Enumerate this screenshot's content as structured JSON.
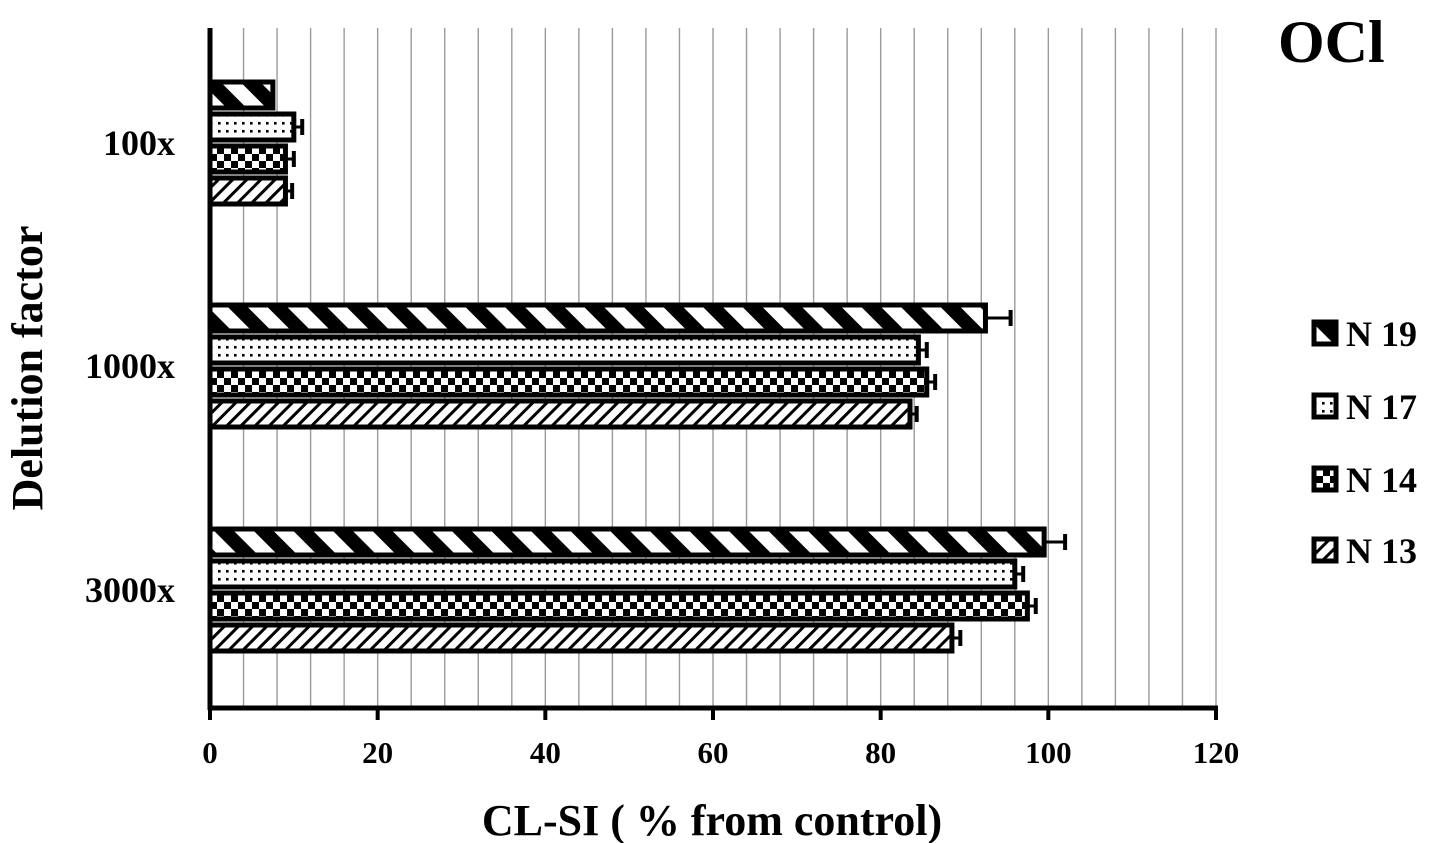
{
  "chart_data": {
    "type": "bar",
    "orientation": "horizontal",
    "title": "OCl",
    "title_overline": "¯",
    "xlabel": "CL-SI ( % from control)",
    "ylabel": "Delution factor",
    "xlim": [
      0,
      120
    ],
    "x_ticks": [
      "0",
      "20",
      "40",
      "60",
      "80",
      "100",
      "120"
    ],
    "minor_gridlines": true,
    "categories": [
      "100x",
      "1000x",
      "3000x"
    ],
    "legend_position": "right",
    "series": [
      {
        "name": "N 19",
        "pattern": "wide-diagonal-stripes",
        "values": [
          7.5,
          92.5,
          99.5
        ],
        "errors": [
          0,
          3,
          2.5
        ]
      },
      {
        "name": "N 17",
        "pattern": "dots",
        "values": [
          10,
          84.5,
          96
        ],
        "errors": [
          1,
          1,
          1
        ]
      },
      {
        "name": "N 14",
        "pattern": "checkerboard",
        "values": [
          9,
          85.5,
          97.5
        ],
        "errors": [
          1,
          1,
          1
        ]
      },
      {
        "name": "N 13",
        "pattern": "thin-diagonal-stripes",
        "values": [
          9,
          83.5,
          88.5
        ],
        "errors": [
          0.8,
          0.8,
          1
        ]
      }
    ]
  }
}
